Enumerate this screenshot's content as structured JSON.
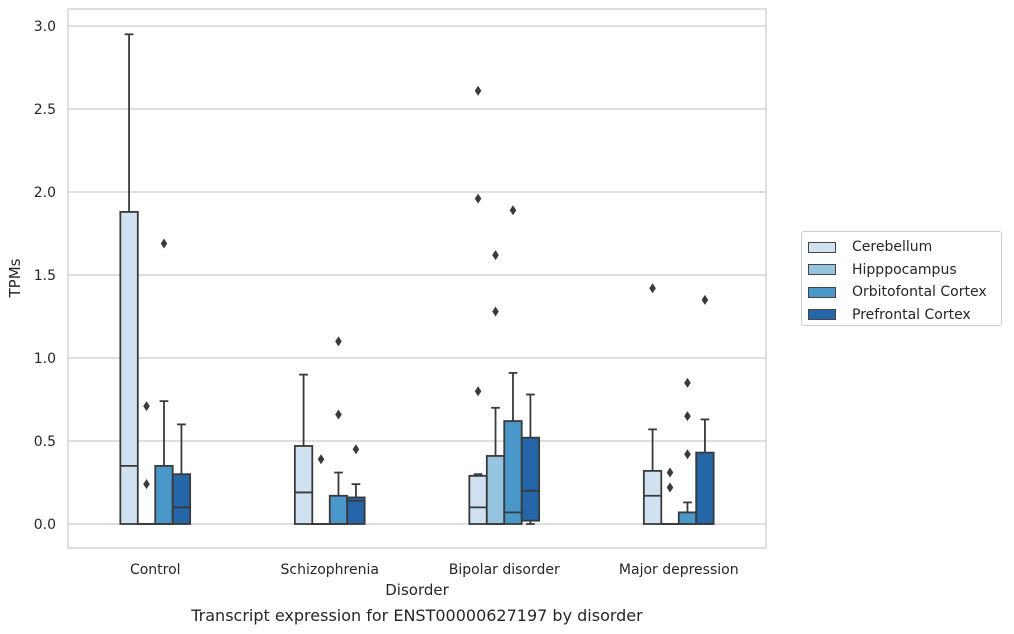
{
  "chart_data": {
    "type": "box",
    "caption": "Transcript expression for ENST00000627197 by disorder",
    "xlabel": "Disorder",
    "ylabel": "TPMs",
    "ylim": [
      -0.14,
      3.1
    ],
    "yticks": [
      "0.0",
      "0.5",
      "1.0",
      "1.5",
      "2.0",
      "2.5",
      "3.0"
    ],
    "grid": true,
    "legend_position": "right",
    "categories": [
      "Control",
      "Schizophrenia",
      "Bipolar disorder",
      "Major depression"
    ],
    "series": [
      {
        "name": "Cerebellum",
        "color": "#d0e1f2",
        "boxes": [
          {
            "whislo": 0.0,
            "q1": 0.0,
            "med": 0.35,
            "q3": 1.88,
            "whishi": 2.95,
            "fliers": []
          },
          {
            "whislo": 0.0,
            "q1": 0.0,
            "med": 0.19,
            "q3": 0.47,
            "whishi": 0.9,
            "fliers": []
          },
          {
            "whislo": 0.0,
            "q1": 0.0,
            "med": 0.1,
            "q3": 0.29,
            "whishi": 0.3,
            "fliers": [
              0.8,
              1.96,
              2.61
            ]
          },
          {
            "whislo": 0.0,
            "q1": 0.0,
            "med": 0.17,
            "q3": 0.32,
            "whishi": 0.57,
            "fliers": [
              1.42
            ]
          }
        ]
      },
      {
        "name": "Hipppocampus",
        "color": "#94c4df",
        "boxes": [
          {
            "whislo": 0.0,
            "q1": 0.0,
            "med": 0.0,
            "q3": 0.0,
            "whishi": 0.0,
            "fliers": [
              0.24,
              0.71
            ]
          },
          {
            "whislo": 0.0,
            "q1": 0.0,
            "med": 0.0,
            "q3": 0.0,
            "whishi": 0.0,
            "fliers": [
              0.39
            ]
          },
          {
            "whislo": 0.0,
            "q1": 0.0,
            "med": 0.0,
            "q3": 0.41,
            "whishi": 0.7,
            "fliers": [
              1.28,
              1.62
            ]
          },
          {
            "whislo": 0.0,
            "q1": 0.0,
            "med": 0.0,
            "q3": 0.0,
            "whishi": 0.0,
            "fliers": [
              0.22,
              0.31
            ]
          }
        ]
      },
      {
        "name": "Orbitofontal Cortex",
        "color": "#4a98c9",
        "boxes": [
          {
            "whislo": 0.0,
            "q1": 0.0,
            "med": 0.0,
            "q3": 0.35,
            "whishi": 0.74,
            "fliers": [
              1.69
            ]
          },
          {
            "whislo": 0.0,
            "q1": 0.0,
            "med": 0.0,
            "q3": 0.17,
            "whishi": 0.31,
            "fliers": [
              0.66,
              1.1
            ]
          },
          {
            "whislo": 0.0,
            "q1": 0.0,
            "med": 0.07,
            "q3": 0.62,
            "whishi": 0.91,
            "fliers": [
              1.89
            ]
          },
          {
            "whislo": 0.0,
            "q1": 0.0,
            "med": 0.0,
            "q3": 0.07,
            "whishi": 0.13,
            "fliers": [
              0.42,
              0.65,
              0.85
            ]
          }
        ]
      },
      {
        "name": "Prefrontal Cortex",
        "color": "#2466a8",
        "boxes": [
          {
            "whislo": 0.0,
            "q1": 0.0,
            "med": 0.1,
            "q3": 0.3,
            "whishi": 0.6,
            "fliers": []
          },
          {
            "whislo": 0.0,
            "q1": 0.0,
            "med": 0.14,
            "q3": 0.16,
            "whishi": 0.24,
            "fliers": [
              0.45
            ]
          },
          {
            "whislo": 0.0,
            "q1": 0.02,
            "med": 0.2,
            "q3": 0.52,
            "whishi": 0.78,
            "fliers": []
          },
          {
            "whislo": 0.0,
            "q1": 0.0,
            "med": 0.0,
            "q3": 0.43,
            "whishi": 0.63,
            "fliers": [
              1.35
            ]
          }
        ]
      }
    ]
  }
}
